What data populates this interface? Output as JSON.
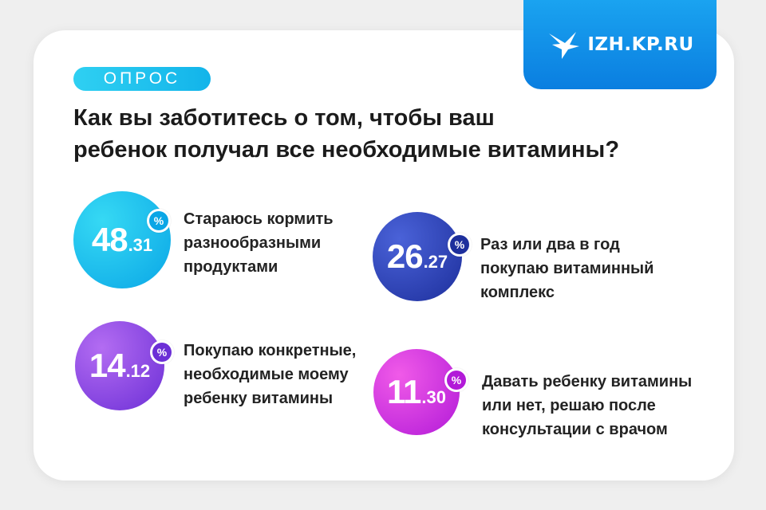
{
  "brand": {
    "logo_text": "IZH.KP.RU"
  },
  "tag": "ОПРОС",
  "title_lines": [
    "Как вы заботитесь о том, чтобы ваш",
    "ребенок получал все необходимые витамины?"
  ],
  "percent_symbol": "%",
  "chart_data": {
    "type": "bar",
    "title": "Как вы заботитесь о том, чтобы ваш ребенок получал все необходимые витамины?",
    "unit": "%",
    "categories": [
      "Стараюсь кормить разнообразными продуктами",
      "Раз или два в год покупаю витаминный комплекс",
      "Покупаю конкретные, необходимые моему ребенку витамины",
      "Давать ребенку витамины или нет, решаю после консультации с врачом"
    ],
    "values": [
      48.31,
      26.27,
      14.12,
      11.3
    ]
  },
  "items": [
    {
      "int": "48",
      "dec": ".31",
      "lines": [
        "Стараюсь кормить",
        "разнообразными",
        "продуктами"
      ],
      "color_a": "#36d9f4",
      "color_b": "#0aa6e6"
    },
    {
      "int": "26",
      "dec": ".27",
      "lines": [
        "Раз или два в год",
        "покупаю витаминный",
        "комплекс"
      ],
      "color_a": "#4a62d8",
      "color_b": "#1d2f9c"
    },
    {
      "int": "14",
      "dec": ".12",
      "lines": [
        "Покупаю конкретные,",
        "необходимые моему",
        "ребенку витамины"
      ],
      "color_a": "#b36cf2",
      "color_b": "#6c2fd6"
    },
    {
      "int": "11",
      "dec": ".30",
      "lines": [
        "Давать ребенку витамины",
        "или нет, решаю после",
        "консультации с врачом"
      ],
      "color_a": "#f05ae8",
      "color_b": "#b21ad8"
    }
  ]
}
